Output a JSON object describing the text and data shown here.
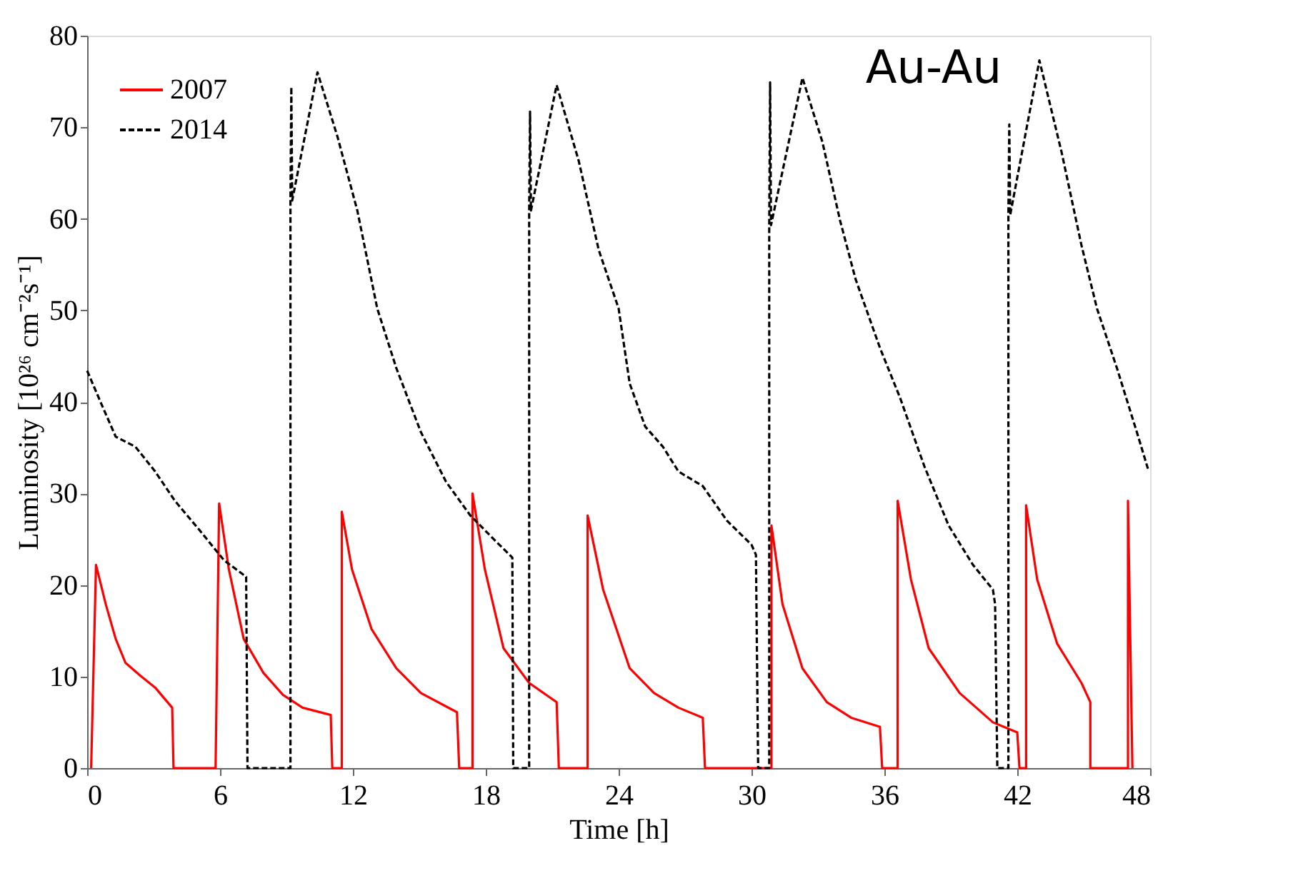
{
  "chart_data": {
    "type": "line",
    "xlabel": "Time [h]",
    "ylabel": "Luminosity [10²⁶ cm⁻²s⁻¹]",
    "annotations": [
      "Au-Au"
    ],
    "xlim": [
      0,
      48
    ],
    "xticks": [
      0,
      6,
      12,
      18,
      24,
      30,
      36,
      42,
      48
    ],
    "ylim": [
      0,
      80
    ],
    "yticks": [
      0,
      10,
      20,
      30,
      40,
      50,
      60,
      70,
      80
    ],
    "grid": false,
    "legend": "top left",
    "series": [
      {
        "name": "2007",
        "color": "#ff0000",
        "line_style": "solid",
        "x": [
          0.18,
          0.4,
          0.84,
          1.29,
          1.73,
          2.4,
          3.07,
          3.84,
          3.9,
          5.8,
          5.96,
          6.4,
          7.07,
          7.96,
          8.84,
          9.73,
          11.0,
          11.07,
          11.5,
          11.5,
          11.96,
          12.84,
          13.96,
          15.07,
          16.7,
          16.8,
          17.4,
          17.4,
          17.96,
          18.8,
          19.96,
          21.2,
          21.3,
          22.6,
          22.6,
          23.3,
          24.5,
          25.6,
          26.7,
          27.8,
          27.9,
          30.9,
          30.9,
          31.4,
          32.3,
          33.4,
          34.5,
          35.8,
          35.9,
          36.6,
          36.6,
          37.2,
          38.0,
          39.4,
          40.9,
          42.0,
          42.1,
          42.4,
          42.4,
          42.9,
          43.8,
          44.9,
          45.3,
          45.3,
          47.0,
          47.0,
          47.2
        ],
        "values": [
          0,
          22.2,
          17.9,
          14.1,
          11.5,
          10.1,
          8.8,
          6.6,
          0,
          0,
          28.9,
          21.7,
          14.1,
          10.4,
          8.0,
          6.6,
          5.8,
          0,
          0,
          28.0,
          21.7,
          15.2,
          10.9,
          8.2,
          6.1,
          0,
          0,
          30,
          21.7,
          13.1,
          9.3,
          7.2,
          0,
          0,
          27.6,
          19.5,
          10.9,
          8.2,
          6.6,
          5.5,
          0,
          0,
          26.5,
          17.9,
          10.9,
          7.2,
          5.5,
          4.5,
          0,
          0,
          29.2,
          20.6,
          13.1,
          8.2,
          5.0,
          3.9,
          0,
          0,
          28.7,
          20.6,
          13.6,
          9.3,
          7.2,
          0,
          0,
          29.2,
          0
        ]
      },
      {
        "name": "2014",
        "color": "#000000",
        "line_style": "dashed",
        "x": [
          0,
          0.62,
          1.29,
          2.18,
          3.07,
          3.96,
          5.07,
          6.18,
          7.18,
          7.24,
          9.18,
          9.18,
          9.22,
          9.26,
          10.4,
          11.3,
          12.2,
          13.1,
          13.96,
          15.07,
          16.2,
          17.3,
          18.4,
          19.2,
          19.24,
          19.96,
          19.96,
          20.0,
          20.04,
          21.2,
          22.2,
          23.1,
          24.0,
          24.5,
          25.2,
          26.0,
          26.7,
          27.8,
          28.9,
          30.0,
          30.2,
          30.3,
          30.8,
          30.8,
          30.84,
          30.88,
          32.3,
          33.2,
          34.0,
          34.7,
          35.8,
          36.7,
          37.8,
          38.9,
          40.0,
          40.9,
          41.0,
          41.1,
          41.6,
          41.6,
          41.64,
          41.68,
          43.0,
          44.0,
          44.9,
          45.6,
          46.5,
          47.4,
          47.9
        ],
        "values": [
          43.4,
          39.9,
          36.2,
          35.1,
          32.4,
          29.2,
          26.0,
          22.7,
          20.9,
          0,
          0,
          62.0,
          74.4,
          62.0,
          76.0,
          69.0,
          60.9,
          50.2,
          43.7,
          36.7,
          31.3,
          27.6,
          24.9,
          23.0,
          0,
          0,
          60.9,
          71.7,
          60.9,
          74.6,
          66.3,
          56.6,
          50.2,
          42.0,
          37.3,
          35.1,
          32.4,
          30.8,
          27.0,
          24.4,
          23.3,
          0,
          0,
          59.3,
          74.9,
          59.3,
          75.4,
          68.4,
          59.8,
          53.4,
          45.9,
          40.5,
          33.0,
          26.5,
          22.2,
          19.5,
          17.9,
          0,
          0,
          60.4,
          70.3,
          60.4,
          77.3,
          67.3,
          57.1,
          50.2,
          43.7,
          36.7,
          32.7
        ]
      }
    ]
  }
}
